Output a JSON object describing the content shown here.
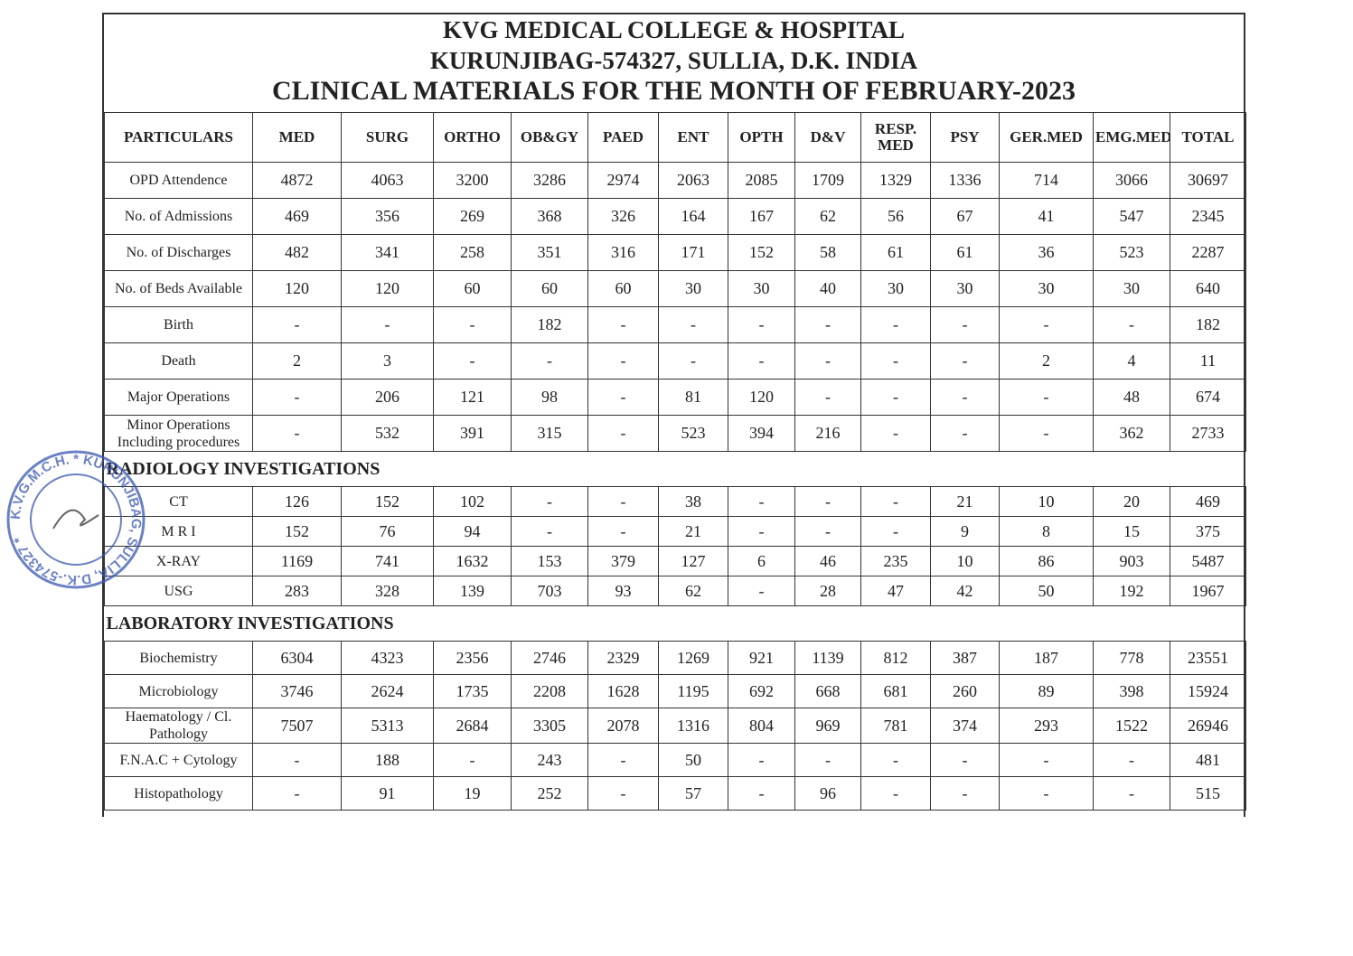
{
  "header": {
    "lines": [
      "KVG MEDICAL COLLEGE & HOSPITAL",
      "KURUNJIBAG-574327, SULLIA, D.K. INDIA",
      "CLINICAL MATERIALS FOR THE MONTH OF FEBRUARY-2023"
    ]
  },
  "stamp": {
    "text": "K.V.G.M.C.H. * KURUNJIBAG, SULLIA, D.K.-574327 *"
  },
  "table": {
    "columns": [
      "PARTICULARS",
      "MED",
      "SURG",
      "ORTHO",
      "OB&GY",
      "PAED",
      "ENT",
      "OPTH",
      "D&V",
      "RESP. MED",
      "PSY",
      "GER.MED",
      "EMG.MED",
      "TOTAL"
    ],
    "sections": [
      {
        "rows": [
          [
            "OPD Attendence",
            "4872",
            "4063",
            "3200",
            "3286",
            "2974",
            "2063",
            "2085",
            "1709",
            "1329",
            "1336",
            "714",
            "3066",
            "30697"
          ],
          [
            "No. of Admissions",
            "469",
            "356",
            "269",
            "368",
            "326",
            "164",
            "167",
            "62",
            "56",
            "67",
            "41",
            "547",
            "2345"
          ],
          [
            "No. of Discharges",
            "482",
            "341",
            "258",
            "351",
            "316",
            "171",
            "152",
            "58",
            "61",
            "61",
            "36",
            "523",
            "2287"
          ],
          [
            "No. of Beds Available",
            "120",
            "120",
            "60",
            "60",
            "60",
            "30",
            "30",
            "40",
            "30",
            "30",
            "30",
            "30",
            "640"
          ],
          [
            "Birth",
            "-",
            "-",
            "-",
            "182",
            "-",
            "-",
            "-",
            "-",
            "-",
            "-",
            "-",
            "-",
            "182"
          ],
          [
            "Death",
            "2",
            "3",
            "-",
            "-",
            "-",
            "-",
            "-",
            "-",
            "-",
            "-",
            "2",
            "4",
            "11"
          ],
          [
            "Major Operations",
            "-",
            "206",
            "121",
            "98",
            "-",
            "81",
            "120",
            "-",
            "-",
            "-",
            "-",
            "48",
            "674"
          ],
          [
            "Minor Operations Including procedures",
            "-",
            "532",
            "391",
            "315",
            "-",
            "523",
            "394",
            "216",
            "-",
            "-",
            "-",
            "362",
            "2733"
          ]
        ]
      },
      {
        "title": "RADIOLOGY INVESTIGATIONS",
        "rows": [
          [
            "CT",
            "126",
            "152",
            "102",
            "-",
            "-",
            "38",
            "-",
            "-",
            "-",
            "21",
            "10",
            "20",
            "469"
          ],
          [
            "M R I",
            "152",
            "76",
            "94",
            "-",
            "-",
            "21",
            "-",
            "-",
            "-",
            "9",
            "8",
            "15",
            "375"
          ],
          [
            "X-RAY",
            "1169",
            "741",
            "1632",
            "153",
            "379",
            "127",
            "6",
            "46",
            "235",
            "10",
            "86",
            "903",
            "5487"
          ],
          [
            "USG",
            "283",
            "328",
            "139",
            "703",
            "93",
            "62",
            "-",
            "28",
            "47",
            "42",
            "50",
            "192",
            "1967"
          ]
        ]
      },
      {
        "title": "LABORATORY INVESTIGATIONS",
        "rows": [
          [
            "Biochemistry",
            "6304",
            "4323",
            "2356",
            "2746",
            "2329",
            "1269",
            "921",
            "1139",
            "812",
            "387",
            "187",
            "778",
            "23551"
          ],
          [
            "Microbiology",
            "3746",
            "2624",
            "1735",
            "2208",
            "1628",
            "1195",
            "692",
            "668",
            "681",
            "260",
            "89",
            "398",
            "15924"
          ],
          [
            "Haematology / Cl. Pathology",
            "7507",
            "5313",
            "2684",
            "3305",
            "2078",
            "1316",
            "804",
            "969",
            "781",
            "374",
            "293",
            "1522",
            "26946"
          ],
          [
            "F.N.A.C + Cytology",
            "-",
            "188",
            "-",
            "243",
            "-",
            "50",
            "-",
            "-",
            "-",
            "-",
            "-",
            "-",
            "481"
          ],
          [
            "Histopathology",
            "-",
            "91",
            "19",
            "252",
            "-",
            "57",
            "-",
            "96",
            "-",
            "-",
            "-",
            "-",
            "515"
          ]
        ]
      }
    ]
  }
}
